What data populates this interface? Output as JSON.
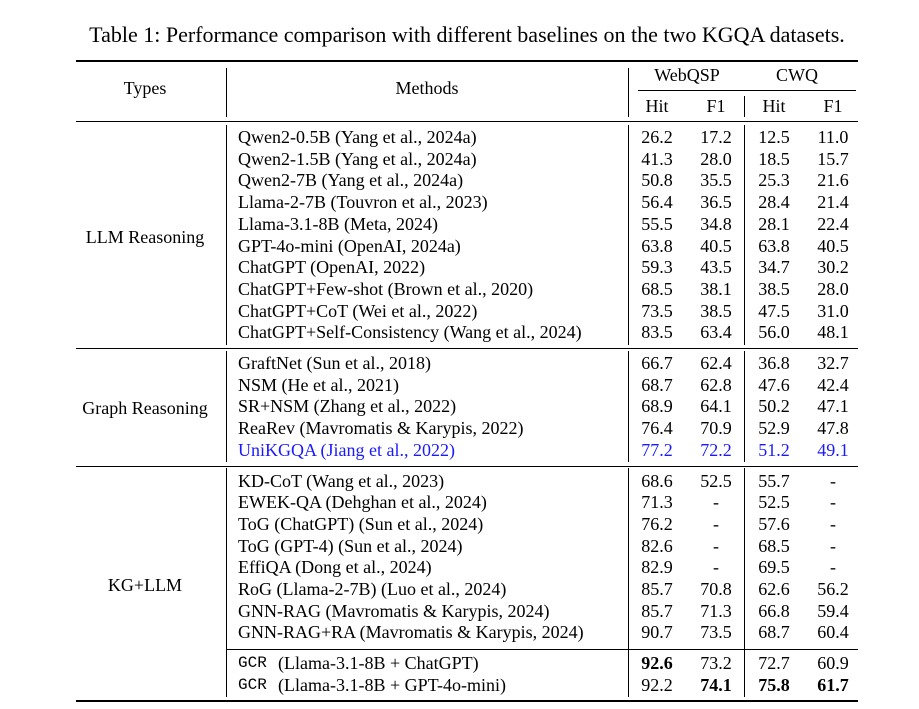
{
  "caption": "Table 1: Performance comparison with different baselines on the two KGQA datasets.",
  "table": {
    "header": {
      "types": "Types",
      "methods": "Methods",
      "datasets": [
        "WebQSP",
        "CWQ"
      ],
      "metrics": [
        "Hit",
        "F1",
        "Hit",
        "F1"
      ]
    },
    "groups": [
      {
        "type": "LLM Reasoning",
        "sections": [
          [
            {
              "method": "Qwen2-0.5B (Yang et al., 2024a)",
              "cells": [
                "26.2",
                "17.2",
                "12.5",
                "11.0"
              ]
            },
            {
              "method": "Qwen2-1.5B (Yang et al., 2024a)",
              "cells": [
                "41.3",
                "28.0",
                "18.5",
                "15.7"
              ]
            },
            {
              "method": "Qwen2-7B (Yang et al., 2024a)",
              "cells": [
                "50.8",
                "35.5",
                "25.3",
                "21.6"
              ]
            },
            {
              "method": "Llama-2-7B (Touvron et al., 2023)",
              "cells": [
                "56.4",
                "36.5",
                "28.4",
                "21.4"
              ]
            },
            {
              "method": "Llama-3.1-8B (Meta, 2024)",
              "cells": [
                "55.5",
                "34.8",
                "28.1",
                "22.4"
              ]
            },
            {
              "method": "GPT-4o-mini (OpenAI, 2024a)",
              "cells": [
                "63.8",
                "40.5",
                "63.8",
                "40.5"
              ]
            },
            {
              "method": "ChatGPT (OpenAI, 2022)",
              "cells": [
                "59.3",
                "43.5",
                "34.7",
                "30.2"
              ]
            },
            {
              "method": "ChatGPT+Few-shot (Brown et al., 2020)",
              "cells": [
                "68.5",
                "38.1",
                "38.5",
                "28.0"
              ]
            },
            {
              "method": "ChatGPT+CoT (Wei et al., 2022)",
              "cells": [
                "73.5",
                "38.5",
                "47.5",
                "31.0"
              ]
            },
            {
              "method": "ChatGPT+Self-Consistency (Wang et al., 2024)",
              "cells": [
                "83.5",
                "63.4",
                "56.0",
                "48.1"
              ]
            }
          ]
        ]
      },
      {
        "type": "Graph Reasoning",
        "sections": [
          [
            {
              "method": "GraftNet (Sun et al., 2018)",
              "cells": [
                "66.7",
                "62.4",
                "36.8",
                "32.7"
              ]
            },
            {
              "method": "NSM (He et al., 2021)",
              "cells": [
                "68.7",
                "62.8",
                "47.6",
                "42.4"
              ]
            },
            {
              "method": "SR+NSM (Zhang et al., 2022)",
              "cells": [
                "68.9",
                "64.1",
                "50.2",
                "47.1"
              ]
            },
            {
              "method": "ReaRev (Mavromatis & Karypis, 2022)",
              "cells": [
                "76.4",
                "70.9",
                "52.9",
                "47.8"
              ]
            },
            {
              "method": "UniKGQA (Jiang et al., 2022)",
              "cells": [
                "77.2",
                "72.2",
                "51.2",
                "49.1"
              ],
              "color": "#1a1aff"
            }
          ]
        ]
      },
      {
        "type": "KG+LLM",
        "sections": [
          [
            {
              "method": "KD-CoT (Wang et al., 2023)",
              "cells": [
                "68.6",
                "52.5",
                "55.7",
                "-"
              ]
            },
            {
              "method": "EWEK-QA (Dehghan et al., 2024)",
              "cells": [
                "71.3",
                "-",
                "52.5",
                "-"
              ]
            },
            {
              "method": "ToG (ChatGPT) (Sun et al., 2024)",
              "cells": [
                "76.2",
                "-",
                "57.6",
                "-"
              ]
            },
            {
              "method": "ToG (GPT-4) (Sun et al., 2024)",
              "cells": [
                "82.6",
                "-",
                "68.5",
                "-"
              ]
            },
            {
              "method": "EffiQA (Dong et al., 2024)",
              "cells": [
                "82.9",
                "-",
                "69.5",
                "-"
              ]
            },
            {
              "method": "RoG (Llama-2-7B) (Luo et al., 2024)",
              "cells": [
                "85.7",
                "70.8",
                "62.6",
                "56.2"
              ]
            },
            {
              "method": "GNN-RAG (Mavromatis & Karypis, 2024)",
              "cells": [
                "85.7",
                "71.3",
                "66.8",
                "59.4"
              ]
            },
            {
              "method": "GNN-RAG+RA (Mavromatis & Karypis, 2024)",
              "cells": [
                "90.7",
                "73.5",
                "68.7",
                "60.4"
              ]
            }
          ],
          [
            {
              "prefix": "GCR",
              "method": "(Llama-3.1-8B + ChatGPT)",
              "cells": [
                "92.6",
                "73.2",
                "72.7",
                "60.9"
              ],
              "bold": [
                0
              ]
            },
            {
              "prefix": "GCR",
              "method": "(Llama-3.1-8B + GPT-4o-mini)",
              "cells": [
                "92.2",
                "74.1",
                "75.8",
                "61.7"
              ],
              "bold": [
                1,
                2,
                3
              ]
            }
          ]
        ]
      }
    ]
  }
}
